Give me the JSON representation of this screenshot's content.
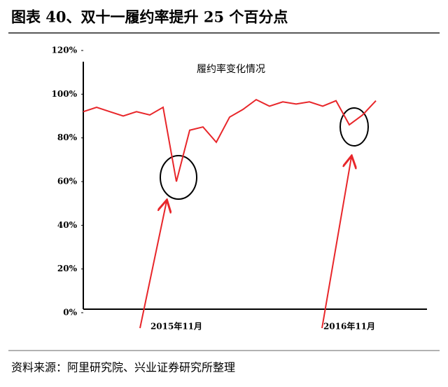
{
  "figure_title": "图表 40、双十一履约率提升 25 个百分点",
  "source": "资料来源：阿里研究院、兴业证券研究所整理",
  "chart_data": {
    "type": "line",
    "title": "履约率变化情况",
    "categories": [
      null,
      null,
      null,
      null,
      null,
      null,
      null,
      "2015年11月",
      null,
      null,
      null,
      null,
      null,
      null,
      null,
      null,
      null,
      null,
      null,
      null,
      "2016年11月",
      null,
      null
    ],
    "series": [
      {
        "name": "履约率",
        "color": "#e8262a",
        "values": [
          92,
          94,
          92,
          90,
          92,
          90.5,
          94,
          60,
          83.5,
          85,
          78,
          89.5,
          93,
          97.5,
          94.5,
          96.5,
          95.5,
          96.5,
          94.5,
          97,
          86,
          90.5,
          97
        ]
      }
    ],
    "ylim": [
      0,
      120
    ],
    "yticks": [
      {
        "value": 0,
        "label": "0%"
      },
      {
        "value": 20,
        "label": "20%"
      },
      {
        "value": 40,
        "label": "40%"
      },
      {
        "value": 60,
        "label": "60%"
      },
      {
        "value": 80,
        "label": "80%"
      },
      {
        "value": 100,
        "label": "100%"
      },
      {
        "value": 120,
        "label": "120%"
      }
    ]
  }
}
